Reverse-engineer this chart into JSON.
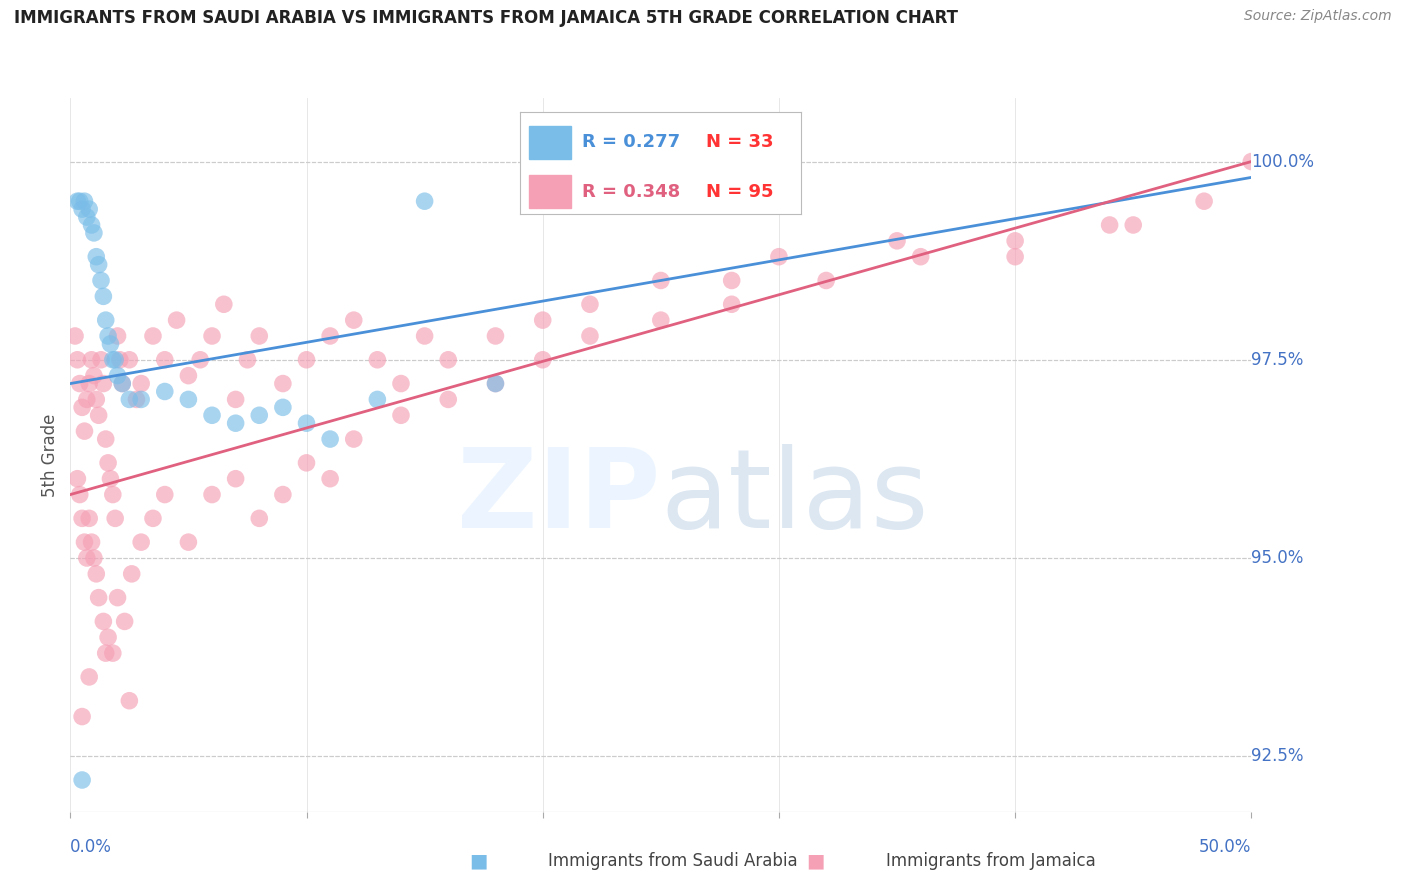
{
  "title": "IMMIGRANTS FROM SAUDI ARABIA VS IMMIGRANTS FROM JAMAICA 5TH GRADE CORRELATION CHART",
  "source": "Source: ZipAtlas.com",
  "ylabel": "5th Grade",
  "yticks": [
    92.5,
    95.0,
    97.5,
    100.0
  ],
  "ytick_labels": [
    "92.5%",
    "95.0%",
    "97.5%",
    "100.0%"
  ],
  "xlim": [
    0.0,
    50.0
  ],
  "ylim": [
    91.8,
    100.8
  ],
  "color_saudi": "#7abde8",
  "color_jamaica": "#f5a0b5",
  "color_trend_saudi": "#4a90d9",
  "color_trend_jamaica": "#e06080",
  "color_axis_labels": "#4472c4",
  "color_title": "#222222",
  "saudi_x": [
    0.3,
    0.4,
    0.5,
    0.6,
    0.7,
    0.8,
    0.9,
    1.0,
    1.1,
    1.2,
    1.3,
    1.4,
    1.5,
    1.6,
    1.7,
    1.8,
    1.9,
    2.0,
    2.2,
    2.5,
    3.0,
    4.0,
    5.0,
    6.0,
    7.0,
    8.0,
    9.0,
    10.0,
    11.0,
    13.0,
    15.0,
    18.0,
    0.5
  ],
  "saudi_y": [
    99.5,
    99.5,
    99.4,
    99.5,
    99.3,
    99.4,
    99.2,
    99.1,
    98.8,
    98.7,
    98.5,
    98.3,
    98.0,
    97.8,
    97.7,
    97.5,
    97.5,
    97.3,
    97.2,
    97.0,
    97.0,
    97.1,
    97.0,
    96.8,
    96.7,
    96.8,
    96.9,
    96.7,
    96.5,
    97.0,
    99.5,
    97.2,
    92.2
  ],
  "saudi_trend_x": [
    0.0,
    50.0
  ],
  "saudi_trend_y": [
    97.2,
    99.8
  ],
  "jamaica_x": [
    0.2,
    0.3,
    0.4,
    0.5,
    0.6,
    0.7,
    0.8,
    0.9,
    1.0,
    1.1,
    1.2,
    1.3,
    1.4,
    1.5,
    1.6,
    1.7,
    1.8,
    1.9,
    2.0,
    2.1,
    2.2,
    2.5,
    2.8,
    3.0,
    3.5,
    4.0,
    4.5,
    5.0,
    5.5,
    6.0,
    6.5,
    7.0,
    7.5,
    8.0,
    9.0,
    10.0,
    11.0,
    12.0,
    13.0,
    14.0,
    15.0,
    16.0,
    18.0,
    20.0,
    22.0,
    25.0,
    28.0,
    30.0,
    35.0,
    40.0,
    45.0,
    50.0,
    0.3,
    0.4,
    0.5,
    0.6,
    0.7,
    0.8,
    0.9,
    1.0,
    1.1,
    1.2,
    1.4,
    1.6,
    1.8,
    2.0,
    2.3,
    2.6,
    3.0,
    3.5,
    4.0,
    5.0,
    6.0,
    7.0,
    8.0,
    9.0,
    10.0,
    11.0,
    12.0,
    14.0,
    16.0,
    18.0,
    20.0,
    22.0,
    25.0,
    28.0,
    32.0,
    36.0,
    40.0,
    44.0,
    48.0,
    0.5,
    0.8,
    1.5,
    2.5
  ],
  "jamaica_y": [
    97.8,
    97.5,
    97.2,
    96.9,
    96.6,
    97.0,
    97.2,
    97.5,
    97.3,
    97.0,
    96.8,
    97.5,
    97.2,
    96.5,
    96.2,
    96.0,
    95.8,
    95.5,
    97.8,
    97.5,
    97.2,
    97.5,
    97.0,
    97.2,
    97.8,
    97.5,
    98.0,
    97.3,
    97.5,
    97.8,
    98.2,
    97.0,
    97.5,
    97.8,
    97.2,
    97.5,
    97.8,
    98.0,
    97.5,
    97.2,
    97.8,
    97.5,
    97.8,
    98.0,
    98.2,
    98.5,
    98.5,
    98.8,
    99.0,
    98.8,
    99.2,
    100.0,
    96.0,
    95.8,
    95.5,
    95.2,
    95.0,
    95.5,
    95.2,
    95.0,
    94.8,
    94.5,
    94.2,
    94.0,
    93.8,
    94.5,
    94.2,
    94.8,
    95.2,
    95.5,
    95.8,
    95.2,
    95.8,
    96.0,
    95.5,
    95.8,
    96.2,
    96.0,
    96.5,
    96.8,
    97.0,
    97.2,
    97.5,
    97.8,
    98.0,
    98.2,
    98.5,
    98.8,
    99.0,
    99.2,
    99.5,
    93.0,
    93.5,
    93.8,
    93.2
  ],
  "jamaica_trend_x": [
    0.0,
    50.0
  ],
  "jamaica_trend_y": [
    95.8,
    100.0
  ],
  "legend_entries": [
    {
      "label": "R = 0.277",
      "N": "N = 33",
      "color_patch": "#7abde8",
      "color_R": "#4a90d9",
      "color_N": "#ff3333"
    },
    {
      "label": "R = 0.348",
      "N": "N = 95",
      "color_patch": "#f5a0b5",
      "color_R": "#e06080",
      "color_N": "#ff3333"
    }
  ],
  "bottom_legend": [
    {
      "label": "Immigrants from Saudi Arabia",
      "color": "#7abde8"
    },
    {
      "label": "Immigrants from Jamaica",
      "color": "#f5a0b5"
    }
  ]
}
